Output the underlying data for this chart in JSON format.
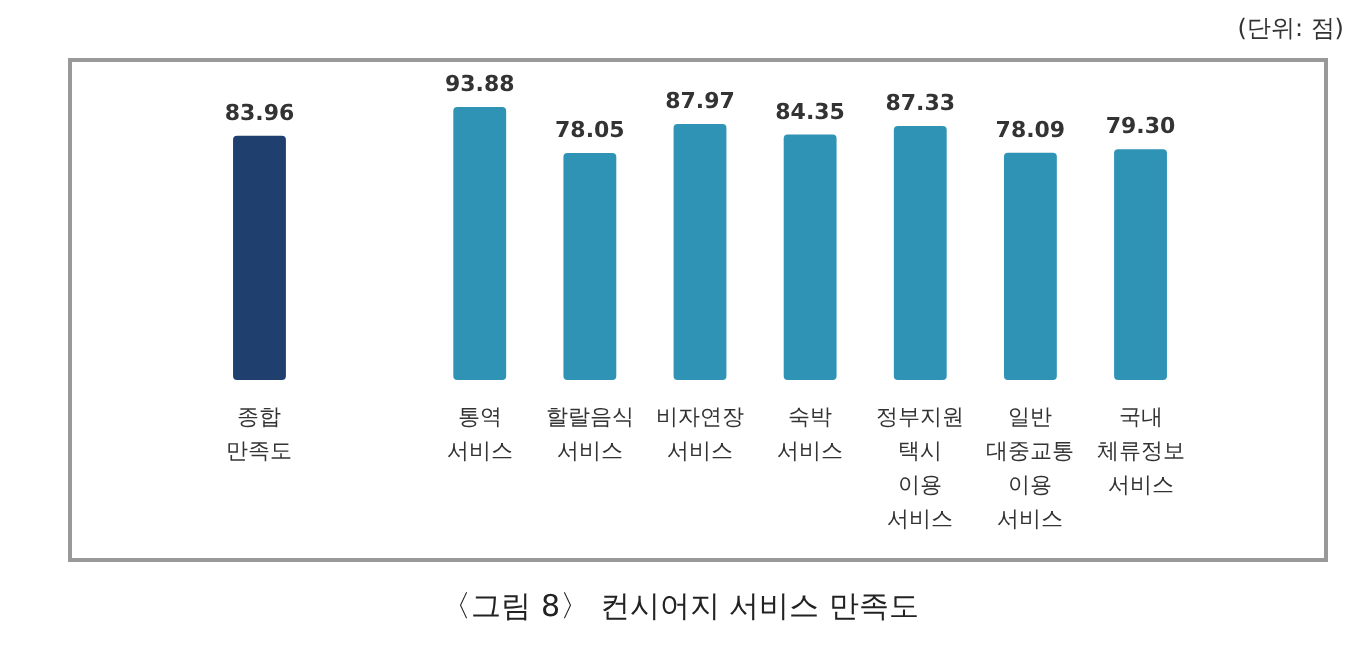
{
  "chart_data": {
    "type": "bar",
    "title": "〈그림 8〉 컨시어지 서비스 만족도",
    "annotations": [
      "(단위: 점)"
    ],
    "categories": [
      "종합\n만족도",
      null,
      "통역\n서비스",
      "할랄음식\n서비스",
      "비자연장\n서비스",
      "숙박\n서비스",
      "정부지원\n택시\n이용\n서비스",
      "일반\n대중교통\n이용\n서비스",
      "국내\n체류정보\n서비스"
    ],
    "values": [
      83.96,
      null,
      93.88,
      78.05,
      87.97,
      84.35,
      87.33,
      78.09,
      79.3
    ],
    "value_labels": [
      "83.96",
      null,
      "93.88",
      "78.05",
      "87.97",
      "84.35",
      "87.33",
      "78.09",
      "79.30"
    ],
    "colors": [
      "#1f3f6e",
      null,
      "#2f93b5",
      "#2f93b5",
      "#2f93b5",
      "#2f93b5",
      "#2f93b5",
      "#2f93b5",
      "#2f93b5"
    ],
    "ylim": [
      0,
      110
    ],
    "tick_labels": "x"
  }
}
